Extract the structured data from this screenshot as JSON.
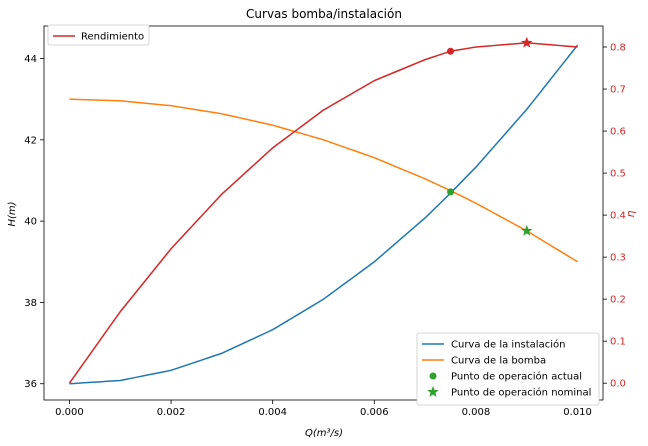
{
  "chart_data": {
    "type": "line",
    "title": "Curvas bomba/instalación",
    "xlabel": "Q(m³/s)",
    "ylabel": "H(m)",
    "y2label": "η",
    "xlim": [
      -0.0005,
      0.0105
    ],
    "ylim": [
      35.6,
      44.8
    ],
    "y2lim": [
      -0.04,
      0.85
    ],
    "x_ticks": [
      0.0,
      0.002,
      0.004,
      0.006,
      0.008,
      0.01
    ],
    "x_tick_labels": [
      "0.000",
      "0.002",
      "0.004",
      "0.006",
      "0.008",
      "0.010"
    ],
    "y_ticks": [
      36,
      38,
      40,
      42,
      44
    ],
    "y_tick_labels": [
      "36",
      "38",
      "40",
      "42",
      "44"
    ],
    "y2_ticks": [
      0.0,
      0.1,
      0.2,
      0.3,
      0.4,
      0.5,
      0.6,
      0.7,
      0.8
    ],
    "y2_tick_labels": [
      "0.0",
      "0.1",
      "0.2",
      "0.3",
      "0.4",
      "0.5",
      "0.6",
      "0.7",
      "0.8"
    ],
    "grid": false,
    "series": [
      {
        "name": "Curva de la instalación",
        "axis": "left",
        "color": "#1f77b4",
        "x": [
          0.0,
          0.001,
          0.002,
          0.003,
          0.004,
          0.005,
          0.006,
          0.007,
          0.0075,
          0.008,
          0.009,
          0.01
        ],
        "y": [
          36.0,
          36.08,
          36.33,
          36.75,
          37.33,
          38.08,
          39.0,
          40.08,
          40.69,
          41.33,
          42.75,
          44.33
        ]
      },
      {
        "name": "Curva de la bomba",
        "axis": "left",
        "color": "#ff7f0e",
        "x": [
          0.0,
          0.001,
          0.002,
          0.003,
          0.004,
          0.005,
          0.006,
          0.007,
          0.0075,
          0.008,
          0.009,
          0.01
        ],
        "y": [
          43.0,
          42.96,
          42.84,
          42.64,
          42.36,
          42.0,
          41.56,
          41.04,
          40.75,
          40.44,
          39.76,
          39.0
        ]
      },
      {
        "name": "Rendimiento",
        "axis": "right",
        "color": "#d62728",
        "x": [
          0.0,
          0.001,
          0.002,
          0.003,
          0.004,
          0.005,
          0.006,
          0.007,
          0.0075,
          0.008,
          0.009,
          0.01
        ],
        "y": [
          0.0,
          0.17,
          0.32,
          0.45,
          0.56,
          0.65,
          0.72,
          0.77,
          0.79,
          0.8,
          0.81,
          0.8
        ]
      }
    ],
    "points": [
      {
        "name": "Punto de operación actual",
        "marker": "circle",
        "color": "#2ca02c",
        "axis": "left",
        "x": 0.0075,
        "y": 40.72
      },
      {
        "name": "Punto de operación nominal",
        "marker": "star",
        "color": "#2ca02c",
        "axis": "left",
        "x": 0.009,
        "y": 39.76
      },
      {
        "name": "",
        "marker": "circle",
        "color": "#d62728",
        "axis": "right",
        "x": 0.0075,
        "y": 0.79
      },
      {
        "name": "",
        "marker": "star",
        "color": "#d62728",
        "axis": "right",
        "x": 0.009,
        "y": 0.81
      }
    ],
    "legends": {
      "upper_left": [
        "Rendimiento"
      ],
      "lower_right": [
        "Curva de la instalación",
        "Curva de la bomba",
        "Punto de operación actual",
        "Punto de operación nominal"
      ]
    }
  }
}
